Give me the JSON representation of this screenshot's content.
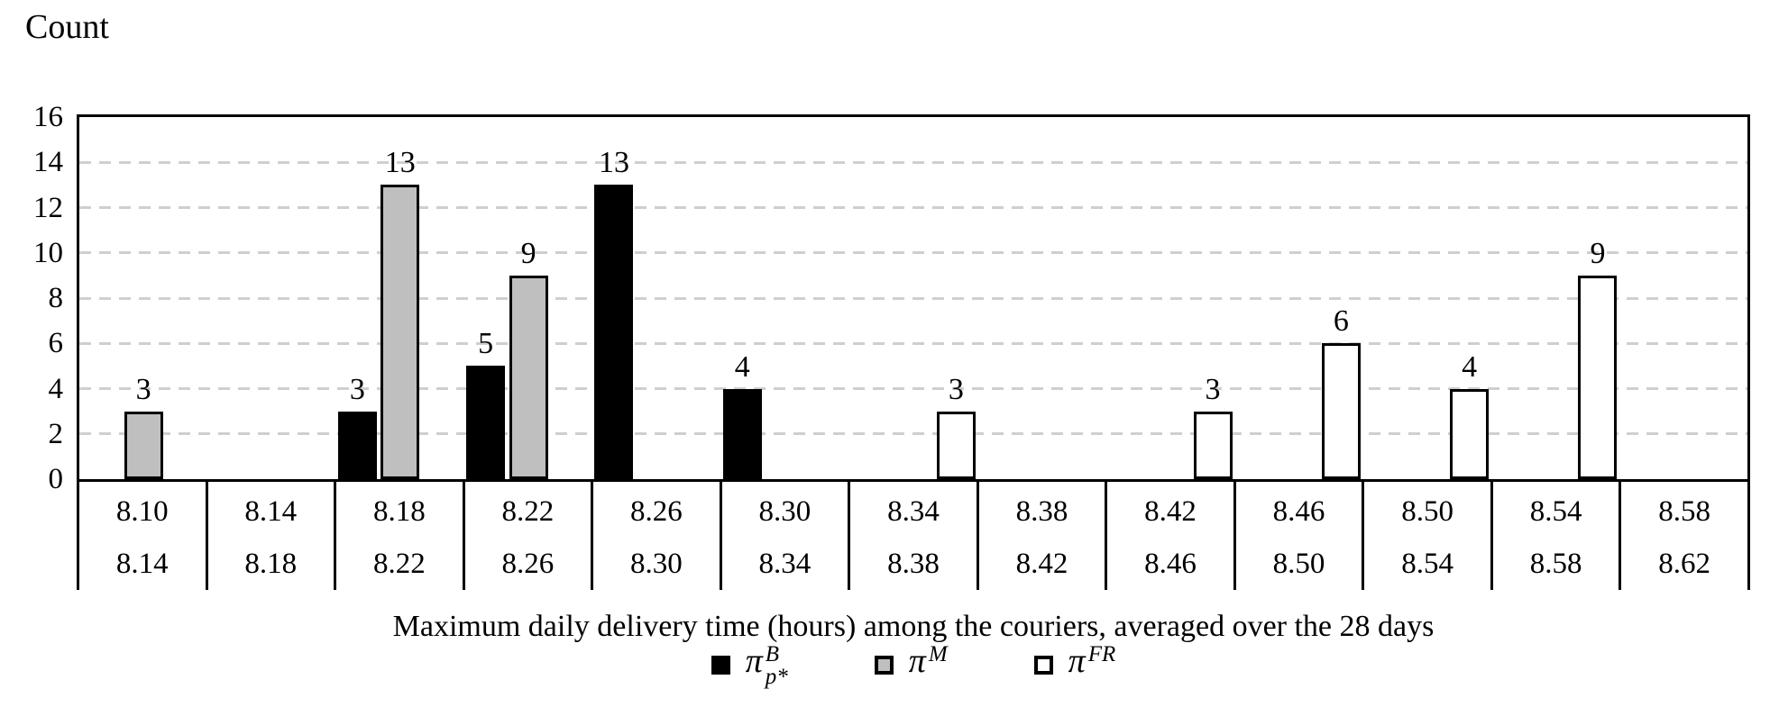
{
  "y_axis": {
    "title": "Count",
    "ticks": [
      0,
      2,
      4,
      6,
      8,
      10,
      12,
      14,
      16
    ],
    "max": 16
  },
  "x_axis": {
    "title": "Maximum daily delivery time (hours) among the couriers, averaged over the 28 days",
    "bins": [
      {
        "low": "8.10",
        "high": "8.14"
      },
      {
        "low": "8.14",
        "high": "8.18"
      },
      {
        "low": "8.18",
        "high": "8.22"
      },
      {
        "low": "8.22",
        "high": "8.26"
      },
      {
        "low": "8.26",
        "high": "8.30"
      },
      {
        "low": "8.30",
        "high": "8.34"
      },
      {
        "low": "8.34",
        "high": "8.38"
      },
      {
        "low": "8.38",
        "high": "8.42"
      },
      {
        "low": "8.42",
        "high": "8.46"
      },
      {
        "low": "8.46",
        "high": "8.50"
      },
      {
        "low": "8.50",
        "high": "8.54"
      },
      {
        "low": "8.54",
        "high": "8.58"
      },
      {
        "low": "8.58",
        "high": "8.62"
      }
    ]
  },
  "legend": {
    "items": [
      {
        "id": "piB",
        "symbol": "π",
        "sup": "B",
        "sub": "p*",
        "fill": "#000000"
      },
      {
        "id": "piM",
        "symbol": "π",
        "sup": "M",
        "sub": "",
        "fill": "#bfbfbf"
      },
      {
        "id": "piFR",
        "symbol": "π",
        "sup": "FR",
        "sub": "",
        "fill": "#ffffff"
      }
    ]
  },
  "bars": [
    {
      "bin": 0,
      "series": "piM",
      "value": 3
    },
    {
      "bin": 2,
      "series": "piB",
      "value": 3
    },
    {
      "bin": 2,
      "series": "piM",
      "value": 13
    },
    {
      "bin": 3,
      "series": "piB",
      "value": 5
    },
    {
      "bin": 3,
      "series": "piM",
      "value": 9
    },
    {
      "bin": 4,
      "series": "piB",
      "value": 13
    },
    {
      "bin": 5,
      "series": "piB",
      "value": 4
    },
    {
      "bin": 6,
      "series": "piFR",
      "value": 3
    },
    {
      "bin": 8,
      "series": "piFR",
      "value": 3
    },
    {
      "bin": 9,
      "series": "piFR",
      "value": 6
    },
    {
      "bin": 10,
      "series": "piFR",
      "value": 4
    },
    {
      "bin": 11,
      "series": "piFR",
      "value": 9
    }
  ],
  "colors": {
    "grid": "#cfcfcf",
    "axis": "#000000",
    "background": "#ffffff"
  },
  "chart_data": {
    "type": "bar",
    "subtype": "clustered-histogram",
    "title": "",
    "xlabel": "Maximum daily delivery time (hours) among the couriers, averaged over the 28 days",
    "ylabel": "Count",
    "ylim": [
      0,
      16
    ],
    "ytick_step": 2,
    "grid": "horizontal dashed gray lines every 2 counts",
    "legend_position": "bottom center",
    "bar_value_labels": true,
    "categories": [
      "8.10-8.14",
      "8.14-8.18",
      "8.18-8.22",
      "8.22-8.26",
      "8.26-8.30",
      "8.30-8.34",
      "8.34-8.38",
      "8.38-8.42",
      "8.42-8.46",
      "8.46-8.50",
      "8.50-8.54",
      "8.54-8.58",
      "8.58-8.62"
    ],
    "series": [
      {
        "name": "π^B_{p*}",
        "fill": "black",
        "values": [
          0,
          0,
          3,
          5,
          13,
          4,
          0,
          0,
          0,
          0,
          0,
          0,
          0
        ]
      },
      {
        "name": "π^M",
        "fill": "gray",
        "values": [
          3,
          0,
          13,
          9,
          0,
          0,
          0,
          0,
          0,
          0,
          0,
          0,
          0
        ]
      },
      {
        "name": "π^FR",
        "fill": "white",
        "values": [
          0,
          0,
          0,
          0,
          0,
          0,
          3,
          0,
          3,
          6,
          4,
          9,
          0
        ]
      }
    ]
  }
}
